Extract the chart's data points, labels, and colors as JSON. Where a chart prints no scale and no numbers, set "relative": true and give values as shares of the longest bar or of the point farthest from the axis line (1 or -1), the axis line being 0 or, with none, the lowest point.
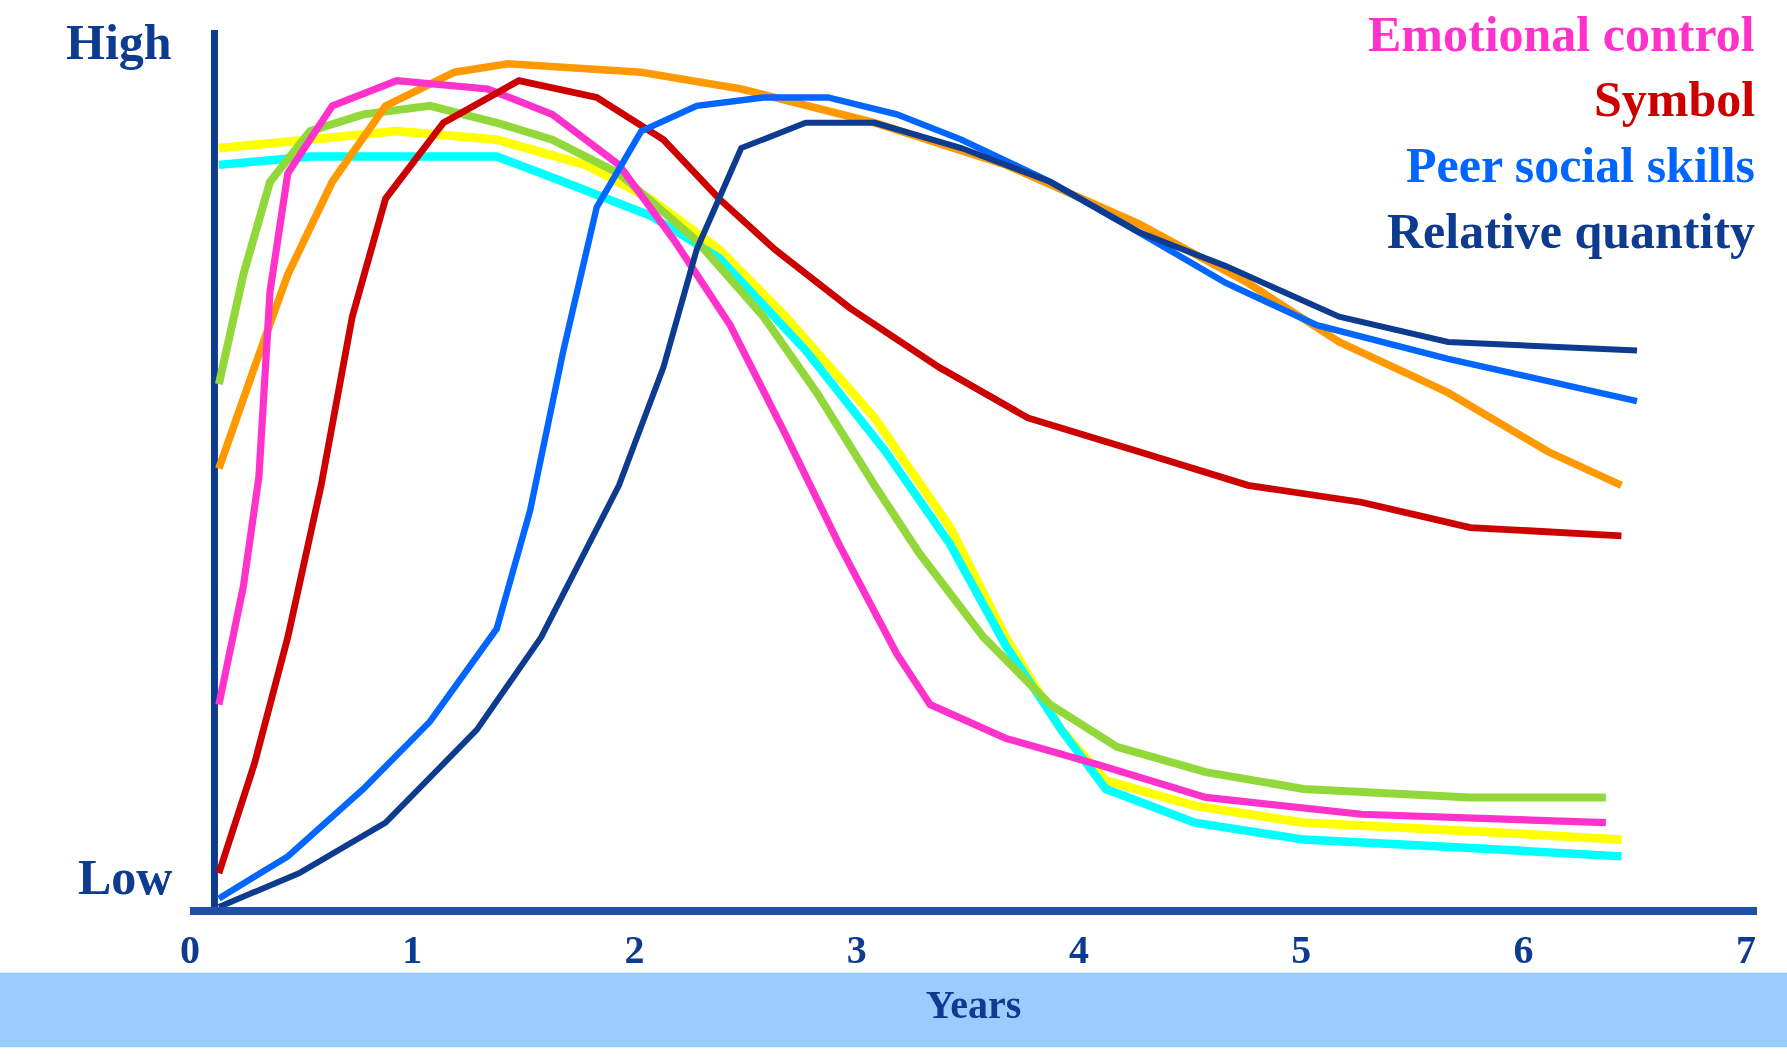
{
  "chart_data": {
    "type": "line",
    "relative": true,
    "xlabel": "Years",
    "xlim": [
      0,
      7.05
    ],
    "xticks": [
      0,
      1,
      2,
      3,
      4,
      5,
      6,
      7
    ],
    "grid": false,
    "legend": false,
    "marker": "none",
    "line_style": "solid",
    "annotations": [
      "High",
      "Low"
    ],
    "ref_lines": [
      {
        "axis": "x",
        "value": 0.11,
        "color": "#0d3b8f"
      }
    ],
    "series": [
      {
        "color": "#ffff00",
        "x": [
          0.13,
          0.54,
          0.93,
          1.38,
          1.78,
          2.07,
          2.38,
          2.68,
          3.08,
          3.42,
          3.67,
          3.92,
          4.12,
          4.52,
          5.01,
          5.76,
          6.44
        ],
        "values": [
          0.9,
          0.91,
          0.92,
          0.91,
          0.88,
          0.84,
          0.78,
          0.7,
          0.58,
          0.45,
          0.32,
          0.21,
          0.15,
          0.12,
          0.1,
          0.09,
          0.08
        ]
      },
      {
        "color": "#00ffff",
        "x": [
          0.13,
          0.54,
          0.93,
          1.38,
          1.68,
          2.07,
          2.38,
          2.77,
          3.13,
          3.42,
          3.67,
          3.92,
          4.12,
          4.52,
          5.01,
          5.76,
          6.44
        ],
        "values": [
          0.88,
          0.89,
          0.89,
          0.89,
          0.86,
          0.82,
          0.77,
          0.66,
          0.54,
          0.43,
          0.31,
          0.21,
          0.14,
          0.1,
          0.08,
          0.07,
          0.06
        ]
      },
      {
        "color": "#92d83a",
        "x": [
          0.13,
          0.24,
          0.36,
          0.54,
          0.78,
          1.08,
          1.38,
          1.63,
          1.93,
          2.28,
          2.58,
          2.82,
          3.08,
          3.28,
          3.57,
          3.87,
          4.17,
          4.57,
          5.01,
          5.76,
          6.37
        ],
        "values": [
          0.62,
          0.75,
          0.86,
          0.92,
          0.94,
          0.95,
          0.93,
          0.91,
          0.87,
          0.79,
          0.7,
          0.61,
          0.5,
          0.42,
          0.32,
          0.24,
          0.19,
          0.16,
          0.14,
          0.13,
          0.13
        ]
      },
      {
        "color": "#ff9900",
        "x": [
          0.13,
          0.29,
          0.44,
          0.64,
          0.88,
          1.19,
          1.43,
          2.03,
          2.48,
          3.08,
          3.67,
          4.27,
          4.76,
          5.17,
          5.66,
          6.11,
          6.44
        ],
        "values": [
          0.52,
          0.64,
          0.75,
          0.86,
          0.95,
          0.99,
          1.0,
          0.99,
          0.97,
          0.93,
          0.88,
          0.81,
          0.74,
          0.67,
          0.61,
          0.54,
          0.5
        ]
      },
      {
        "name": "Emotional control",
        "color": "#ff33cc",
        "x": [
          0.13,
          0.24,
          0.31,
          0.36,
          0.44,
          0.64,
          0.93,
          1.34,
          1.63,
          1.93,
          2.18,
          2.43,
          2.68,
          2.92,
          3.08,
          3.18,
          3.33,
          3.67,
          4.07,
          4.57,
          5.27,
          6.37
        ],
        "values": [
          0.24,
          0.38,
          0.51,
          0.73,
          0.87,
          0.95,
          0.98,
          0.97,
          0.94,
          0.88,
          0.79,
          0.69,
          0.56,
          0.43,
          0.35,
          0.3,
          0.24,
          0.2,
          0.17,
          0.13,
          0.11,
          0.1
        ]
      },
      {
        "name": "Symbol",
        "color": "#cc0000",
        "x": [
          0.13,
          0.29,
          0.44,
          0.59,
          0.73,
          0.88,
          1.14,
          1.48,
          1.83,
          2.13,
          2.38,
          2.63,
          2.97,
          3.37,
          3.77,
          4.27,
          4.76,
          5.27,
          5.76,
          6.44
        ],
        "values": [
          0.04,
          0.17,
          0.32,
          0.5,
          0.7,
          0.84,
          0.93,
          0.98,
          0.96,
          0.91,
          0.84,
          0.78,
          0.71,
          0.64,
          0.58,
          0.54,
          0.5,
          0.48,
          0.45,
          0.44
        ]
      },
      {
        "name": "Peer social skills",
        "color": "#0066ff",
        "x": [
          0.13,
          0.44,
          0.78,
          1.08,
          1.38,
          1.53,
          1.68,
          1.83,
          2.03,
          2.28,
          2.58,
          2.87,
          3.18,
          3.47,
          3.87,
          4.27,
          4.66,
          5.07,
          5.66,
          6.51
        ],
        "values": [
          0.01,
          0.06,
          0.14,
          0.22,
          0.33,
          0.47,
          0.66,
          0.83,
          0.92,
          0.95,
          0.96,
          0.96,
          0.94,
          0.91,
          0.86,
          0.8,
          0.74,
          0.69,
          0.65,
          0.6
        ]
      },
      {
        "name": "Relative quantity",
        "color": "#0d3b8f",
        "x": [
          0.13,
          0.49,
          0.88,
          1.29,
          1.58,
          1.93,
          2.13,
          2.28,
          2.48,
          2.77,
          3.08,
          3.47,
          3.87,
          4.27,
          4.66,
          5.17,
          5.66,
          6.51
        ],
        "values": [
          0.0,
          0.04,
          0.1,
          0.21,
          0.32,
          0.5,
          0.64,
          0.78,
          0.9,
          0.93,
          0.93,
          0.9,
          0.86,
          0.8,
          0.76,
          0.7,
          0.67,
          0.66
        ]
      }
    ]
  }
}
